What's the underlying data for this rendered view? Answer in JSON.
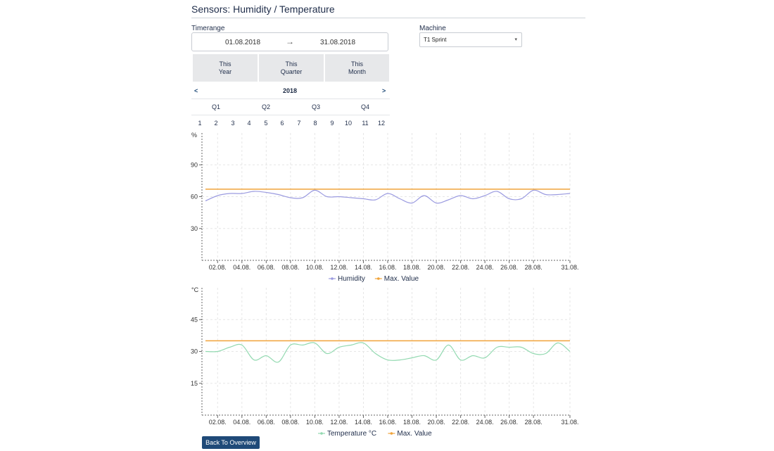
{
  "header": {
    "title": "Sensors: Humidity / Temperature"
  },
  "timerange": {
    "label": "Timerange",
    "start": "01.08.2018",
    "arrow": "→",
    "end": "31.08.2018",
    "presets": [
      "This\nYear",
      "This\nQuarter",
      "This\nMonth"
    ],
    "year": "2018",
    "prev": "<",
    "next": ">",
    "quarters": [
      "Q1",
      "Q2",
      "Q3",
      "Q4"
    ],
    "months": [
      "1",
      "2",
      "3",
      "4",
      "5",
      "6",
      "7",
      "8",
      "9",
      "10",
      "11",
      "12"
    ]
  },
  "machine": {
    "label": "Machine",
    "selected": "T1 Sprint",
    "caret": "▾"
  },
  "colors": {
    "humidity": "#9b9be0",
    "temperature": "#92d9b0",
    "max": "#f0a33a",
    "axis": "#666666"
  },
  "chart_data": [
    {
      "type": "line",
      "unit_label": "%",
      "y_ticks": [
        30,
        60,
        90
      ],
      "ylim": [
        0,
        120
      ],
      "categories": [
        "01.08.",
        "02.08.",
        "03.08.",
        "04.08.",
        "05.08.",
        "06.08.",
        "07.08.",
        "08.08.",
        "09.08.",
        "10.08.",
        "11.08.",
        "12.08.",
        "13.08.",
        "14.08.",
        "15.08.",
        "16.08.",
        "17.08.",
        "18.08.",
        "19.08.",
        "20.08.",
        "21.08.",
        "22.08.",
        "23.08.",
        "24.08.",
        "25.08.",
        "26.08.",
        "27.08.",
        "28.08.",
        "29.08.",
        "30.08.",
        "31.08."
      ],
      "x_tick_labels": [
        "02.08.",
        "04.08.",
        "06.08.",
        "08.08.",
        "10.08.",
        "12.08.",
        "14.08.",
        "16.08.",
        "18.08.",
        "20.08.",
        "22.08.",
        "24.08.",
        "26.08.",
        "28.08.",
        "31.08."
      ],
      "series": [
        {
          "name": "Humidity",
          "values": [
            56,
            61,
            63,
            63,
            65,
            64,
            62,
            59,
            59,
            66,
            60,
            60,
            59,
            58,
            57,
            63,
            58,
            54,
            61,
            54,
            57,
            61,
            58,
            61,
            65,
            58,
            58,
            66,
            62,
            62,
            63
          ]
        },
        {
          "name": "Max. Value",
          "values": [
            67,
            67,
            67,
            67,
            67,
            67,
            67,
            67,
            67,
            67,
            67,
            67,
            67,
            67,
            67,
            67,
            67,
            67,
            67,
            67,
            67,
            67,
            67,
            67,
            67,
            67,
            67,
            67,
            67,
            67,
            67
          ]
        }
      ],
      "grid": true,
      "legend": "bottom"
    },
    {
      "type": "line",
      "unit_label": "°C",
      "y_ticks": [
        15,
        30,
        45
      ],
      "ylim": [
        0,
        60
      ],
      "categories": [
        "01.08.",
        "02.08.",
        "03.08.",
        "04.08.",
        "05.08.",
        "06.08.",
        "07.08.",
        "08.08.",
        "09.08.",
        "10.08.",
        "11.08.",
        "12.08.",
        "13.08.",
        "14.08.",
        "15.08.",
        "16.08.",
        "17.08.",
        "18.08.",
        "19.08.",
        "20.08.",
        "21.08.",
        "22.08.",
        "23.08.",
        "24.08.",
        "25.08.",
        "26.08.",
        "27.08.",
        "28.08.",
        "29.08.",
        "30.08.",
        "31.08."
      ],
      "x_tick_labels": [
        "02.08.",
        "04.08.",
        "06.08.",
        "08.08.",
        "10.08.",
        "12.08.",
        "14.08.",
        "16.08.",
        "18.08.",
        "20.08.",
        "22.08.",
        "24.08.",
        "26.08.",
        "28.08.",
        "31.08."
      ],
      "series": [
        {
          "name": "Temperature °C",
          "values": [
            30,
            30,
            32,
            33,
            26,
            28,
            25,
            33,
            33,
            34,
            29,
            32,
            33,
            34,
            29,
            26,
            26,
            27,
            28,
            26,
            33,
            26,
            28,
            27,
            32,
            32,
            32,
            29,
            29,
            34,
            30
          ]
        },
        {
          "name": "Max. Value",
          "values": [
            35,
            35,
            35,
            35,
            35,
            35,
            35,
            35,
            35,
            35,
            35,
            35,
            35,
            35,
            35,
            35,
            35,
            35,
            35,
            35,
            35,
            35,
            35,
            35,
            35,
            35,
            35,
            35,
            35,
            35,
            35
          ]
        }
      ],
      "grid": true,
      "legend": "bottom"
    }
  ],
  "footer": {
    "back_label": "Back To Overview"
  }
}
